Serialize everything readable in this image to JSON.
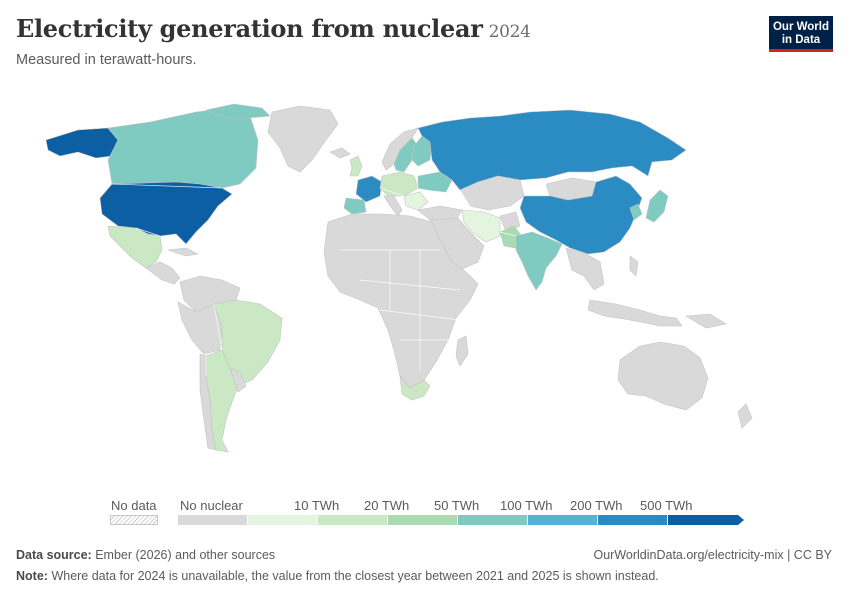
{
  "header": {
    "title": "Electricity generation from nuclear",
    "year": "2024",
    "subtitle": "Measured in terawatt-hours."
  },
  "logo": {
    "line1": "Our World",
    "line2": "in Data"
  },
  "map": {
    "colors": {
      "no_data": "#ffffff",
      "no_nuclear": "#d9d9d9",
      "bin_0_10": "#e3f5df",
      "bin_10_20": "#c9e8c3",
      "bin_20_50": "#a8dbb1",
      "bin_50_100": "#7fcbc2",
      "bin_100_200": "#54b2d5",
      "bin_200_500": "#2b8cc4",
      "bin_500_plus": "#0c5fa3"
    },
    "countries_highlighted": [
      "United States",
      "Canada",
      "Mexico",
      "Brazil",
      "Argentina",
      "France",
      "Spain",
      "United Kingdom",
      "Sweden",
      "Finland",
      "Russia",
      "China",
      "India",
      "Pakistan",
      "Iran",
      "Japan",
      "South Korea",
      "South Africa",
      "Ukraine"
    ]
  },
  "legend": {
    "no_data": "No data",
    "no_nuclear": "No nuclear",
    "ticks": [
      "10 TWh",
      "20 TWh",
      "50 TWh",
      "100 TWh",
      "200 TWh",
      "500 TWh"
    ]
  },
  "footer": {
    "source_label": "Data source:",
    "source_text": "Ember (2026) and other sources",
    "url_text": "OurWorldinData.org/electricity-mix | CC BY",
    "note_label": "Note:",
    "note_text": "Where data for 2024 is unavailable, the value from the closest year between 2021 and 2025 is shown instead."
  }
}
